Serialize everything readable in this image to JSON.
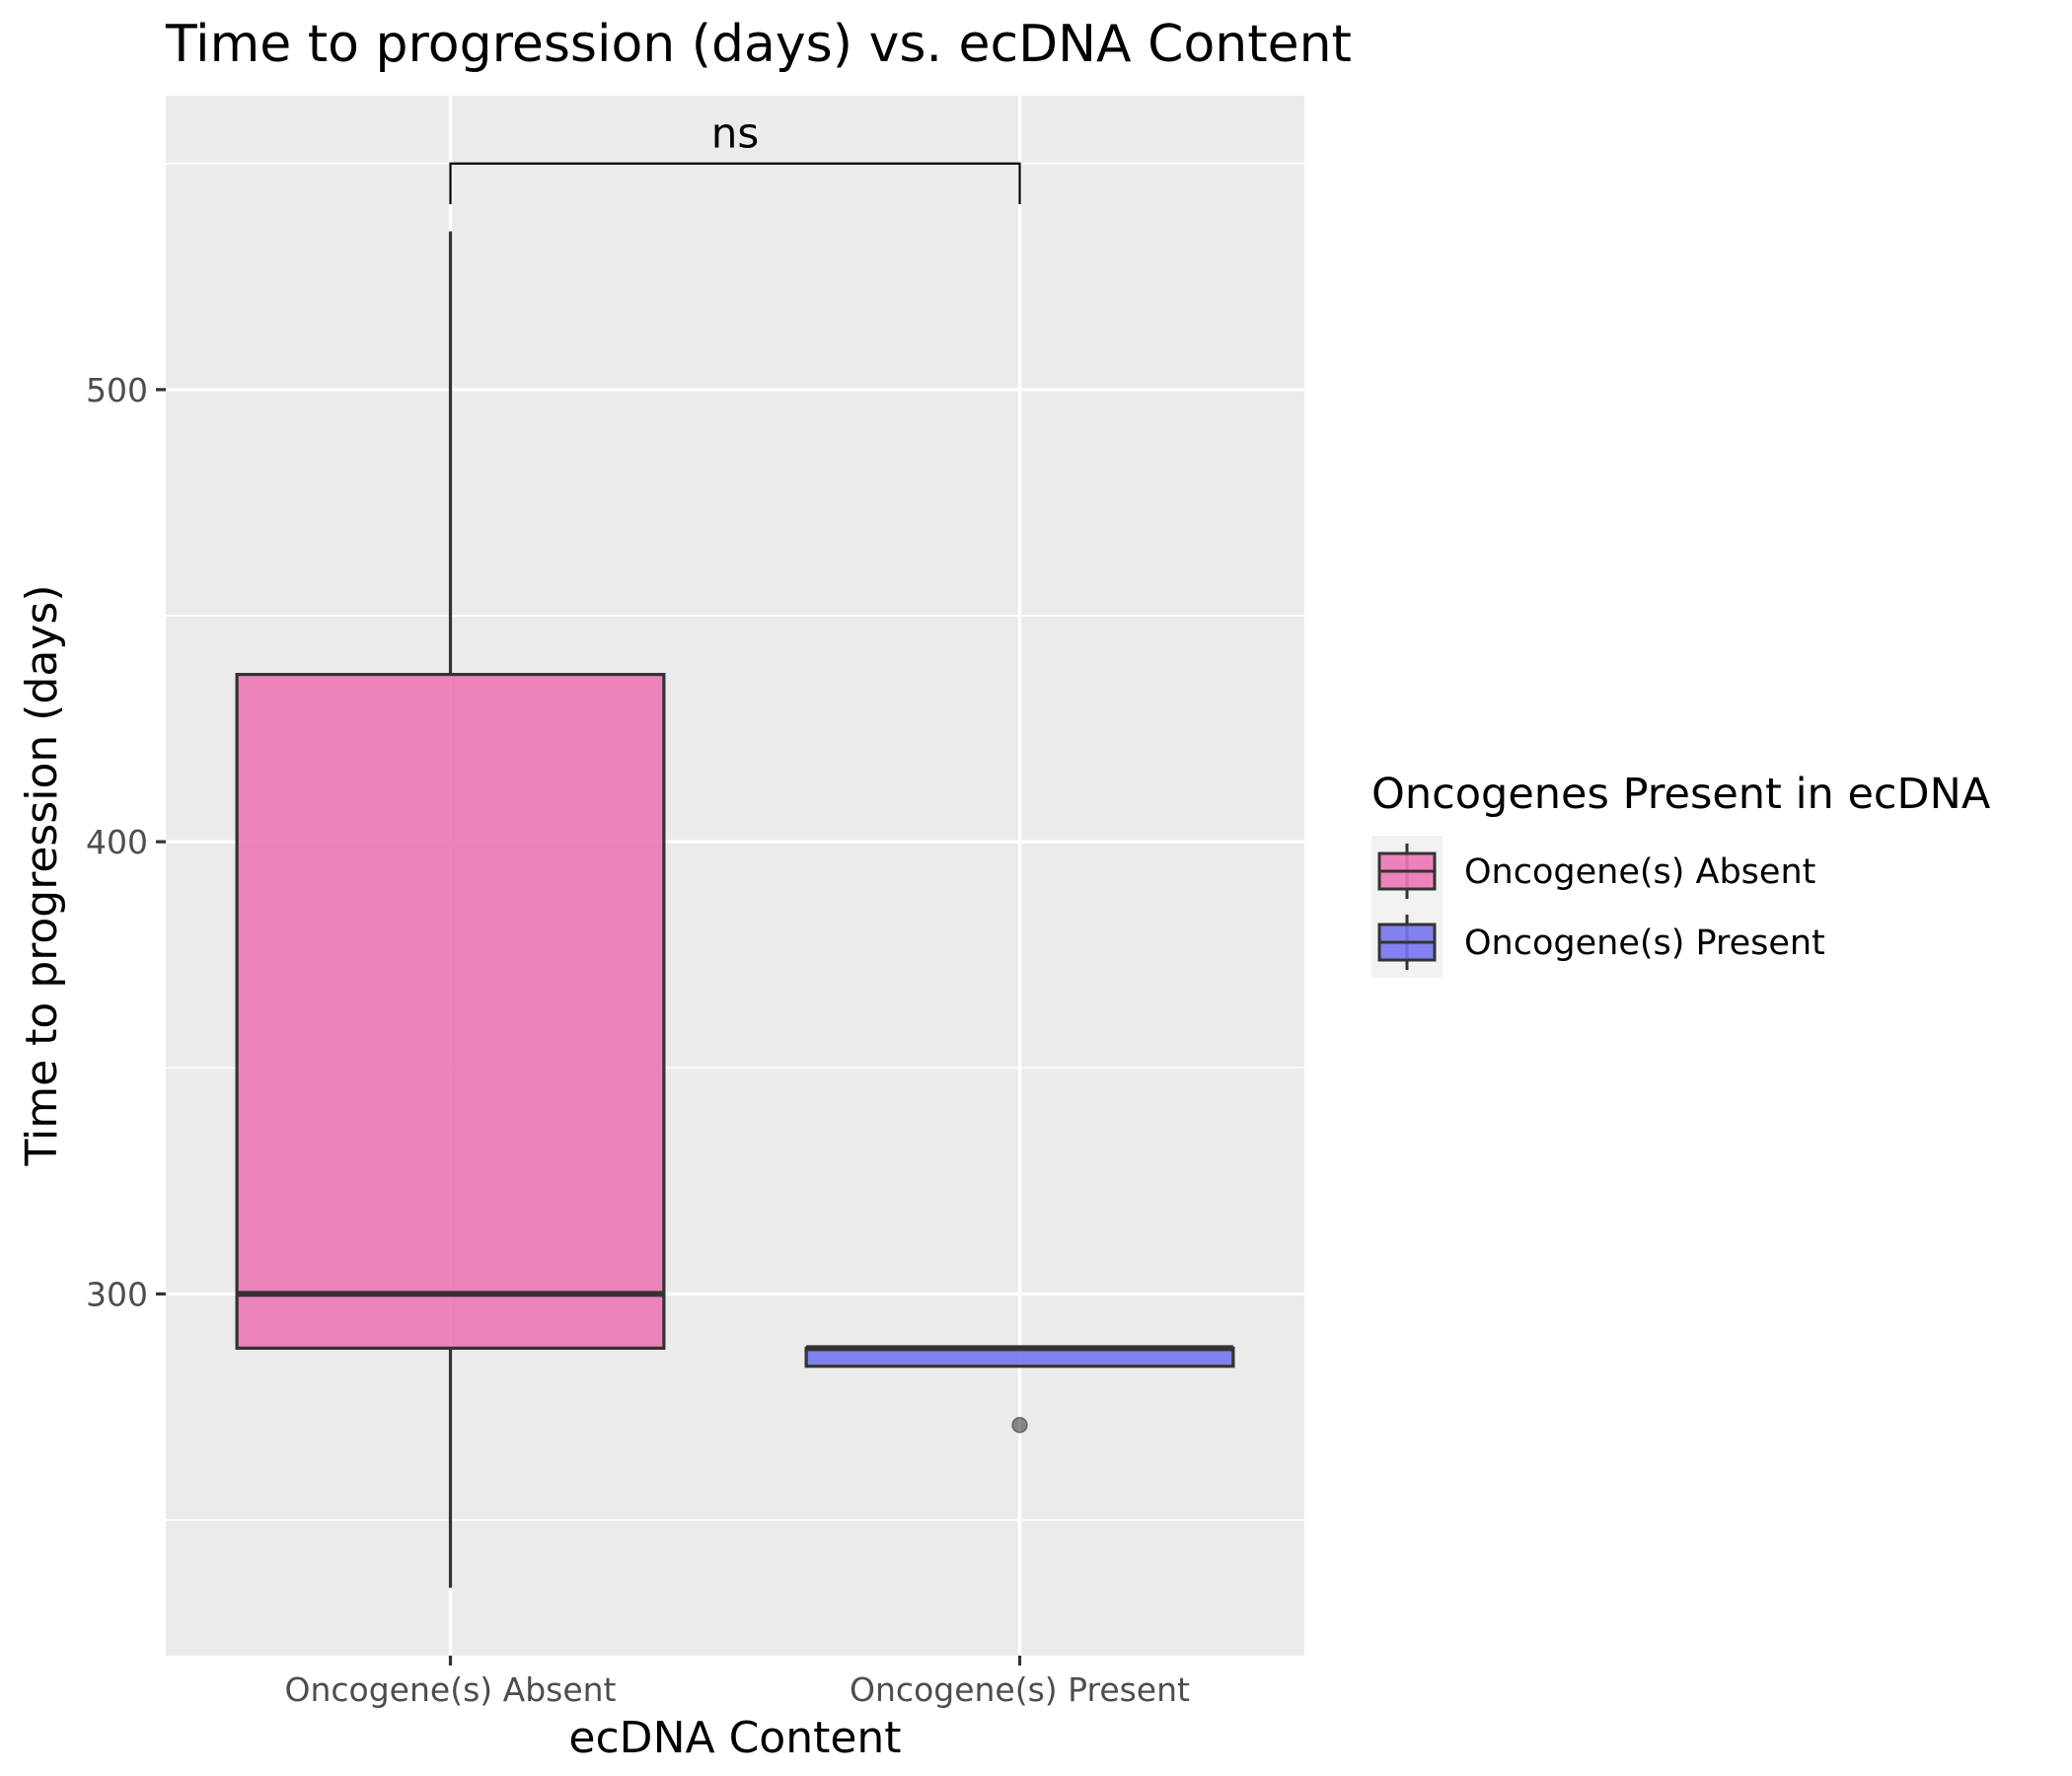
{
  "chart_data": {
    "type": "box",
    "title": "Time to progression (days) vs. ecDNA Content",
    "xlabel": "ecDNA Content",
    "ylabel": "Time to progression (days)",
    "categories": [
      "Oncogene(s) Absent",
      "Oncogene(s) Present"
    ],
    "ylim": [
      220,
      565
    ],
    "y_ticks": [
      300,
      400,
      500
    ],
    "y_tick_labels": [
      "300",
      "400",
      "500"
    ],
    "y_minor_ticks": [
      250,
      350,
      450,
      550
    ],
    "grid": true,
    "panel_background": "#ebebeb",
    "grid_color": "#ffffff",
    "boxes": [
      {
        "category": "Oncogene(s) Absent",
        "min": 235,
        "q1": 288,
        "median": 300,
        "q3": 437,
        "max": 535,
        "outliers": [],
        "color": "#ec77b5"
      },
      {
        "category": "Oncogene(s) Present",
        "min": 284,
        "q1": 284,
        "median": 288,
        "q3": 288,
        "max": 288,
        "outliers": [
          271
        ],
        "color": "#7474ee"
      }
    ],
    "significance": {
      "label": "ns",
      "between": [
        "Oncogene(s) Absent",
        "Oncogene(s) Present"
      ],
      "y": 550,
      "tick_bottom": 541
    },
    "legend": {
      "title": "Oncogenes Present in ecDNA",
      "position": "right",
      "entries": [
        {
          "label": "Oncogene(s) Absent",
          "color": "#ec77b5"
        },
        {
          "label": "Oncogene(s) Present",
          "color": "#7474ee"
        }
      ]
    }
  }
}
